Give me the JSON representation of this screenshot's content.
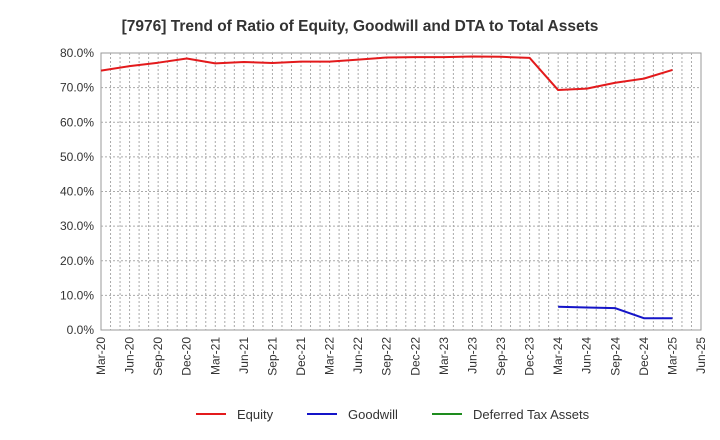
{
  "chart_data": {
    "type": "line",
    "title": "[7976]  Trend of Ratio of Equity, Goodwill and DTA to Total Assets",
    "xlabel": "",
    "ylabel": "",
    "ylim": [
      0,
      80
    ],
    "y_ticks": [
      "0.0%",
      "10.0%",
      "20.0%",
      "30.0%",
      "40.0%",
      "50.0%",
      "60.0%",
      "70.0%",
      "80.0%"
    ],
    "categories": [
      "Mar-20",
      "Jun-20",
      "Sep-20",
      "Dec-20",
      "Mar-21",
      "Jun-21",
      "Sep-21",
      "Dec-21",
      "Mar-22",
      "Jun-22",
      "Sep-22",
      "Dec-22",
      "Mar-23",
      "Jun-23",
      "Sep-23",
      "Dec-23",
      "Mar-24",
      "Jun-24",
      "Sep-24",
      "Dec-24",
      "Mar-25",
      "Jun-25"
    ],
    "grid": true,
    "legend_position": "bottom",
    "series": [
      {
        "name": "Equity",
        "color": "#e31a1c",
        "values": [
          74.9,
          76.2,
          77.2,
          78.4,
          77.0,
          77.4,
          77.1,
          77.5,
          77.5,
          78.1,
          78.7,
          78.8,
          78.8,
          79.0,
          78.9,
          78.6,
          69.3,
          69.7,
          71.4,
          72.6,
          75.1,
          null
        ]
      },
      {
        "name": "Goodwill",
        "color": "#1414c8",
        "values": [
          null,
          null,
          null,
          null,
          null,
          null,
          null,
          null,
          null,
          null,
          null,
          null,
          null,
          null,
          null,
          null,
          6.7,
          6.5,
          6.3,
          3.4,
          3.4,
          null
        ]
      },
      {
        "name": "Deferred Tax Assets",
        "color": "#1e8c1e",
        "values": [
          null,
          null,
          null,
          null,
          null,
          null,
          null,
          null,
          null,
          null,
          null,
          null,
          null,
          null,
          null,
          null,
          null,
          null,
          null,
          null,
          null,
          null
        ]
      }
    ]
  }
}
